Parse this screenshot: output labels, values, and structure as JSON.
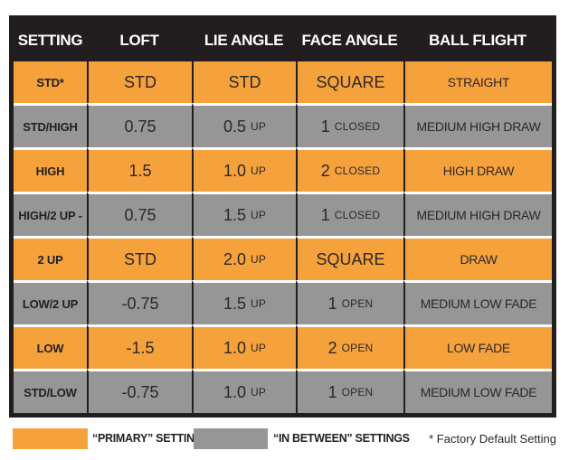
{
  "colors": {
    "primary_orange": "#F5A23C",
    "between_gray": "#969696",
    "header_black": "#221E1F",
    "text_dark": "#2B2728",
    "header_text": "#FFFFFF"
  },
  "chart_data": {
    "type": "table",
    "columns": [
      "SETTING",
      "LOFT",
      "LIE ANGLE",
      "FACE ANGLE",
      "BALL FLIGHT"
    ],
    "rows": [
      {
        "tone": "primary",
        "setting": "STD*",
        "loft": "STD",
        "lie": "STD",
        "lie_unit": "",
        "face": "SQUARE",
        "face_unit": "",
        "flight": "STRAIGHT"
      },
      {
        "tone": "between",
        "setting": "STD/HIGH",
        "loft": "0.75",
        "lie": "0.5",
        "lie_unit": "UP",
        "face": "1",
        "face_unit": "CLOSED",
        "flight": "MEDIUM HIGH DRAW"
      },
      {
        "tone": "primary",
        "setting": "HIGH",
        "loft": "1.5",
        "lie": "1.0",
        "lie_unit": "UP",
        "face": "2",
        "face_unit": "CLOSED",
        "flight": "HIGH DRAW"
      },
      {
        "tone": "between",
        "setting": "HIGH/2 UP -",
        "loft": "0.75",
        "lie": "1.5",
        "lie_unit": "UP",
        "face": "1",
        "face_unit": "CLOSED",
        "flight": "MEDIUM HIGH DRAW"
      },
      {
        "tone": "primary",
        "setting": "2 UP",
        "loft": "STD",
        "lie": "2.0",
        "lie_unit": "UP",
        "face": "SQUARE",
        "face_unit": "",
        "flight": "DRAW"
      },
      {
        "tone": "between",
        "setting": "LOW/2 UP",
        "loft": "-0.75",
        "lie": "1.5",
        "lie_unit": "UP",
        "face": "1",
        "face_unit": "OPEN",
        "flight": "MEDIUM LOW FADE"
      },
      {
        "tone": "primary",
        "setting": "LOW",
        "loft": "-1.5",
        "lie": "1.0",
        "lie_unit": "UP",
        "face": "2",
        "face_unit": "OPEN",
        "flight": "LOW FADE"
      },
      {
        "tone": "between",
        "setting": "STD/LOW",
        "loft": "-0.75",
        "lie": "1.0",
        "lie_unit": "UP",
        "face": "1",
        "face_unit": "OPEN",
        "flight": "MEDIUM LOW FADE"
      }
    ],
    "legend": {
      "primary_label": "“PRIMARY” SETTINGS",
      "between_label": "“IN BETWEEN” SETTINGS",
      "footnote": "* Factory Default Setting"
    }
  }
}
